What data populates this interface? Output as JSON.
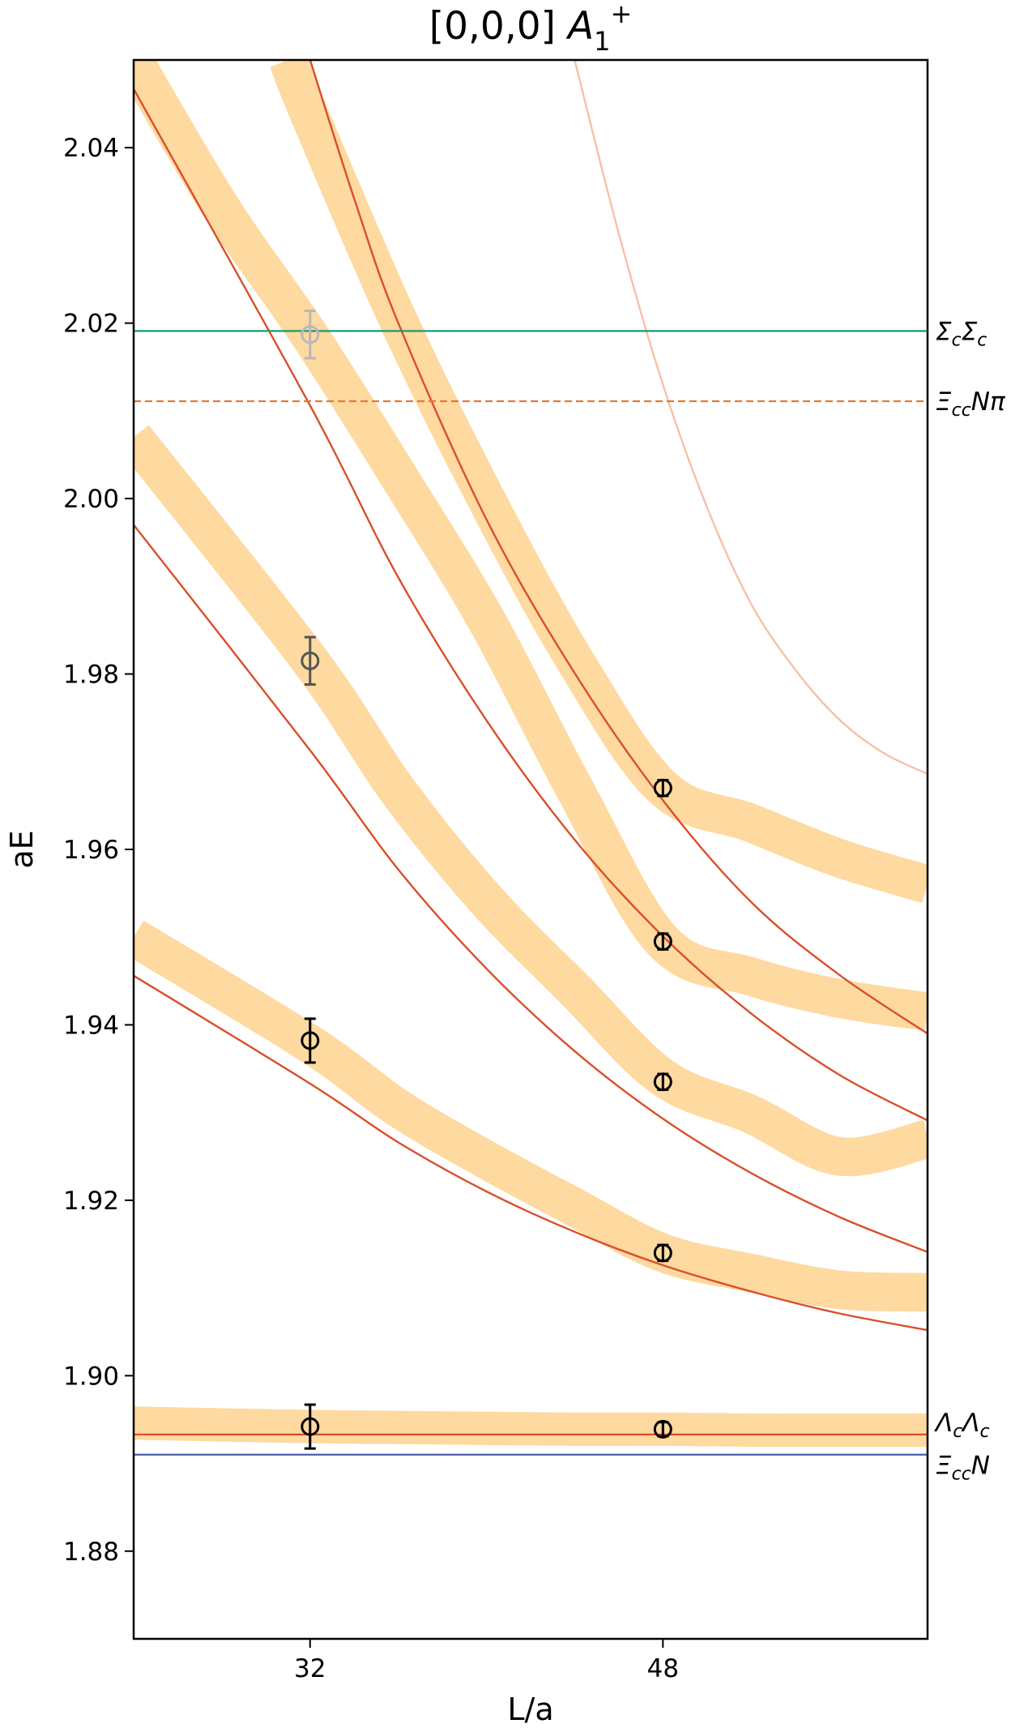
{
  "chart_data": {
    "type": "line",
    "title": "[0,0,0] A1+",
    "title_parts": {
      "base": "[0,0,0] ",
      "irrep": "A",
      "sub": "1",
      "sup": "+"
    },
    "xlabel": "L/a",
    "ylabel": "aE",
    "xlim": [
      24.0,
      60.0
    ],
    "ylim": [
      1.87,
      2.05
    ],
    "xticks": [
      32,
      48
    ],
    "xtick_labels": [
      "32",
      "48"
    ],
    "yticks": [
      1.88,
      1.9,
      1.92,
      1.94,
      1.96,
      1.98,
      2.0,
      2.02,
      2.04
    ],
    "ytick_labels": [
      "1.88",
      "1.90",
      "1.92",
      "1.94",
      "1.96",
      "1.98",
      "2.00",
      "2.02",
      "2.04"
    ],
    "grid": false,
    "thresholds": [
      {
        "label": "ΣcΣc",
        "main": [
          "Σ",
          "Σ"
        ],
        "subs": [
          "c",
          "c"
        ],
        "y": 2.0191,
        "color": "#1a9a6c",
        "style": "solid"
      },
      {
        "label": "ΞccNπ",
        "main": [
          "Ξ",
          "Nπ"
        ],
        "subs": [
          "cc",
          ""
        ],
        "y": 2.0111,
        "color": "#e07b39",
        "style": "dashed"
      },
      {
        "label": "ΛcΛc",
        "main": [
          "Λ",
          "Λ"
        ],
        "subs": [
          "c",
          "c"
        ],
        "y": 1.8933,
        "color": "#d94f2a",
        "style": "solid"
      },
      {
        "label": "ΞccN",
        "main": [
          "Ξ",
          "N"
        ],
        "subs": [
          "cc",
          ""
        ],
        "y": 1.891,
        "color": "#4a5fa8",
        "style": "solid"
      }
    ],
    "noninteracting_levels": [
      {
        "x": [
          24.0,
          32.0,
          36.0,
          40.0,
          44.0,
          48.0,
          52.0,
          56.0,
          60.0
        ],
        "y": [
          1.9456,
          1.9333,
          1.9266,
          1.921,
          1.9164,
          1.9126,
          1.9096,
          1.9071,
          1.9052
        ],
        "color": "#d94f2a",
        "opacity": 1.0
      },
      {
        "x": [
          24.0,
          32.0,
          36.0,
          40.0,
          44.0,
          48.0,
          52.0,
          56.0,
          60.0
        ],
        "y": [
          1.997,
          1.9713,
          1.9577,
          1.9464,
          1.937,
          1.9293,
          1.9231,
          1.9181,
          1.9141
        ],
        "color": "#d94f2a",
        "opacity": 1.0
      },
      {
        "x": [
          24.0,
          32.0,
          36.0,
          40.0,
          44.0,
          48.0,
          52.0,
          56.0,
          60.0
        ],
        "y": [
          2.0467,
          2.0106,
          1.991,
          1.9747,
          1.9611,
          1.9501,
          1.9413,
          1.9343,
          1.9291
        ],
        "color": "#d94f2a",
        "opacity": 1.0
      },
      {
        "x": [
          32.0,
          34.0,
          36.0,
          40.0,
          44.0,
          48.0,
          52.0,
          56.0,
          60.0
        ],
        "y": [
          2.05,
          2.0342,
          2.02,
          1.9976,
          1.9801,
          1.9656,
          1.954,
          1.9457,
          1.939
        ],
        "color": "#d94f2a",
        "opacity": 1.0
      },
      {
        "x": [
          44.0,
          46.0,
          48.0,
          50.0,
          52.0,
          54.0,
          56.0,
          58.0,
          60.0
        ],
        "y": [
          2.05,
          2.0302,
          2.013,
          1.999,
          1.988,
          1.9805,
          1.9748,
          1.971,
          1.9686
        ],
        "color": "#f4a582",
        "opacity": 0.7
      }
    ],
    "spectrum_bands": [
      {
        "x": [
          24.0,
          32.0,
          36.0,
          40.0,
          44.0,
          48.0,
          52.0,
          56.0,
          60.0
        ],
        "y": [
          1.8946,
          1.8942,
          1.8941,
          1.894,
          1.8939,
          1.8939,
          1.8938,
          1.8938,
          1.8938
        ],
        "width": 0.0019,
        "color": "#fed9a0"
      },
      {
        "x": [
          24.0,
          32.0,
          36.0,
          40.0,
          44.0,
          48.0,
          52.0,
          56.0,
          60.0
        ],
        "y": [
          1.95,
          1.9378,
          1.9305,
          1.9246,
          1.9192,
          1.914,
          1.9117,
          1.9098,
          1.9095
        ],
        "width": 0.0022,
        "color": "#fed9a0"
      },
      {
        "x": [
          24.0,
          32.0,
          36.0,
          40.0,
          44.0,
          48.0,
          52.0,
          56.0,
          60.0
        ],
        "y": [
          2.007,
          1.9815,
          1.9666,
          1.9542,
          1.944,
          1.934,
          1.9298,
          1.925,
          1.927
        ],
        "width": 0.0022,
        "color": "#fed9a0"
      },
      {
        "x": [
          24.0,
          28.0,
          32.0,
          36.0,
          40.0,
          44.0,
          48.0,
          52.0,
          56.0,
          60.0
        ],
        "y": [
          2.05,
          2.033,
          2.0185,
          2.0026,
          1.9861,
          1.9669,
          1.9495,
          1.9455,
          1.943,
          1.9415
        ],
        "width": 0.0022,
        "color": "#fed9a0"
      },
      {
        "x": [
          31.0,
          32.0,
          36.0,
          40.0,
          44.0,
          48.0,
          52.0,
          56.0,
          60.0
        ],
        "y": [
          2.05,
          2.0436,
          2.0203,
          1.9999,
          1.9816,
          1.967,
          1.963,
          1.959,
          1.956
        ],
        "width": 0.0022,
        "color": "#fed9a0"
      }
    ],
    "data_points": [
      {
        "x": 32,
        "y": 1.8942,
        "err": 0.0025,
        "color": "#000000"
      },
      {
        "x": 32,
        "y": 1.9382,
        "err": 0.0025,
        "color": "#000000"
      },
      {
        "x": 32,
        "y": 1.9815,
        "err": 0.0027,
        "color": "#555555"
      },
      {
        "x": 32,
        "y": 2.0187,
        "err": 0.0027,
        "color": "#b8b8b8"
      },
      {
        "x": 48,
        "y": 1.8939,
        "err": 0.0008,
        "color": "#000000"
      },
      {
        "x": 48,
        "y": 1.914,
        "err": 0.0009,
        "color": "#000000"
      },
      {
        "x": 48,
        "y": 1.9335,
        "err": 0.0009,
        "color": "#000000"
      },
      {
        "x": 48,
        "y": 1.9495,
        "err": 0.0009,
        "color": "#000000"
      },
      {
        "x": 48,
        "y": 1.967,
        "err": 0.0009,
        "color": "#000000"
      }
    ]
  }
}
